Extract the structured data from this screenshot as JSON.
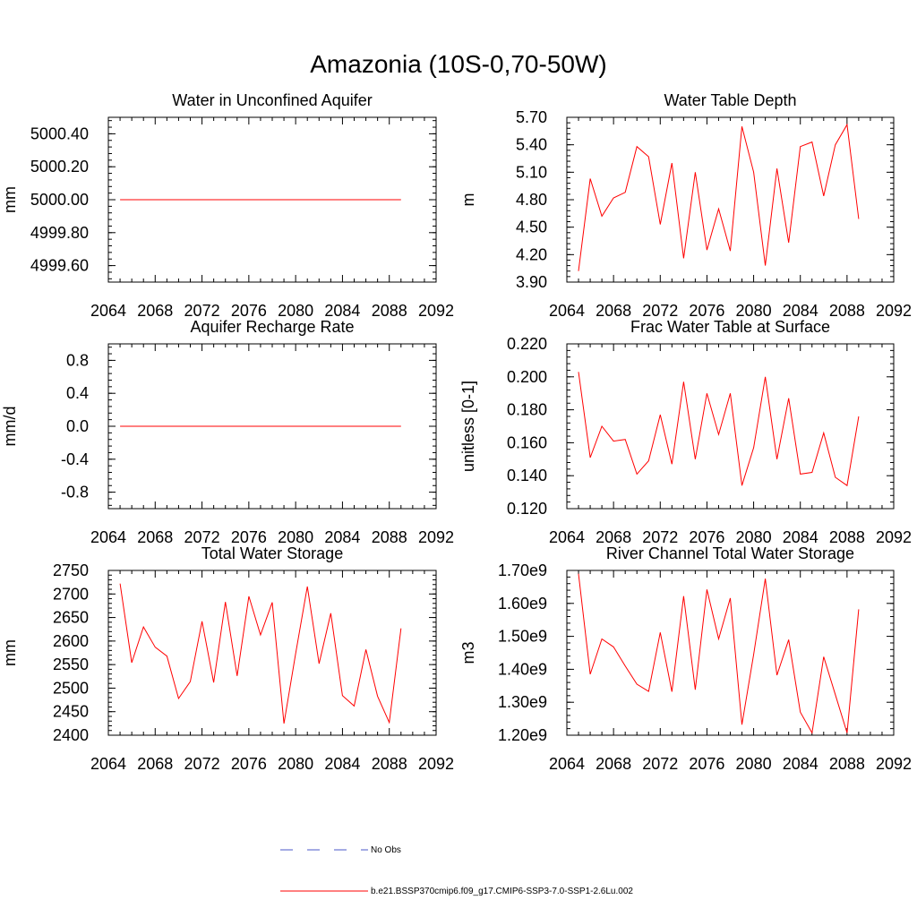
{
  "title": "Amazonia (10S-0,70-50W)",
  "colors": {
    "series": "#ff0000",
    "obs": "#4a57c8",
    "axis": "#000000"
  },
  "legend": {
    "obs_label": "No Obs",
    "run_label": "b.e21.BSSP370cmip6.f09_g17.CMIP6-SSP3-7.0-SSP1-2.6Lu.002"
  },
  "chart_data": [
    {
      "type": "line",
      "title": "Water in Unconfined Aquifer",
      "ylabel": "mm",
      "x": [
        2065,
        2066,
        2067,
        2068,
        2069,
        2070,
        2071,
        2072,
        2073,
        2074,
        2075,
        2076,
        2077,
        2078,
        2079,
        2080,
        2081,
        2082,
        2083,
        2084,
        2085,
        2086,
        2087,
        2088,
        2089
      ],
      "series": [
        {
          "values": [
            5000,
            5000,
            5000,
            5000,
            5000,
            5000,
            5000,
            5000,
            5000,
            5000,
            5000,
            5000,
            5000,
            5000,
            5000,
            5000,
            5000,
            5000,
            5000,
            5000,
            5000,
            5000,
            5000,
            5000,
            5000
          ]
        }
      ],
      "xlim": [
        2064,
        2092
      ],
      "xticks": [
        2064,
        2068,
        2072,
        2076,
        2080,
        2084,
        2088,
        2092
      ],
      "ylim": [
        4999.5,
        5000.5
      ],
      "yticks": [
        4999.6,
        4999.8,
        5000.0,
        5000.2,
        5000.4
      ],
      "ytick_labels": [
        "4999.60",
        "4999.80",
        "5000.00",
        "5000.20",
        "5000.40"
      ]
    },
    {
      "type": "line",
      "title": "Water Table Depth",
      "ylabel": "m",
      "x": [
        2065,
        2066,
        2067,
        2068,
        2069,
        2070,
        2071,
        2072,
        2073,
        2074,
        2075,
        2076,
        2077,
        2078,
        2079,
        2080,
        2081,
        2082,
        2083,
        2084,
        2085,
        2086,
        2087,
        2088,
        2089
      ],
      "series": [
        {
          "values": [
            4.02,
            5.03,
            4.62,
            4.82,
            4.88,
            5.38,
            5.27,
            4.53,
            5.2,
            4.16,
            5.1,
            4.25,
            4.7,
            4.24,
            5.6,
            5.1,
            4.08,
            5.14,
            4.33,
            5.38,
            5.43,
            4.84,
            5.4,
            5.62,
            4.59
          ]
        }
      ],
      "xlim": [
        2064,
        2092
      ],
      "xticks": [
        2064,
        2068,
        2072,
        2076,
        2080,
        2084,
        2088,
        2092
      ],
      "ylim": [
        3.9,
        5.7
      ],
      "yticks": [
        3.9,
        4.2,
        4.5,
        4.8,
        5.1,
        5.4,
        5.7
      ],
      "ytick_labels": [
        "3.90",
        "4.20",
        "4.50",
        "4.80",
        "5.10",
        "5.40",
        "5.70"
      ]
    },
    {
      "type": "line",
      "title": "Aquifer Recharge Rate",
      "ylabel": "mm/d",
      "x": [
        2065,
        2066,
        2067,
        2068,
        2069,
        2070,
        2071,
        2072,
        2073,
        2074,
        2075,
        2076,
        2077,
        2078,
        2079,
        2080,
        2081,
        2082,
        2083,
        2084,
        2085,
        2086,
        2087,
        2088,
        2089
      ],
      "series": [
        {
          "values": [
            0,
            0,
            0,
            0,
            0,
            0,
            0,
            0,
            0,
            0,
            0,
            0,
            0,
            0,
            0,
            0,
            0,
            0,
            0,
            0,
            0,
            0,
            0,
            0,
            0
          ]
        }
      ],
      "xlim": [
        2064,
        2092
      ],
      "xticks": [
        2064,
        2068,
        2072,
        2076,
        2080,
        2084,
        2088,
        2092
      ],
      "ylim": [
        -1.0,
        1.0
      ],
      "yticks": [
        -0.8,
        -0.4,
        0.0,
        0.4,
        0.8
      ],
      "ytick_labels": [
        "-0.8",
        "-0.4",
        "0.0",
        "0.4",
        "0.8"
      ]
    },
    {
      "type": "line",
      "title": "Frac Water Table at Surface",
      "ylabel": "unitless [0-1]",
      "x": [
        2065,
        2066,
        2067,
        2068,
        2069,
        2070,
        2071,
        2072,
        2073,
        2074,
        2075,
        2076,
        2077,
        2078,
        2079,
        2080,
        2081,
        2082,
        2083,
        2084,
        2085,
        2086,
        2087,
        2088,
        2089
      ],
      "series": [
        {
          "values": [
            0.203,
            0.151,
            0.17,
            0.161,
            0.162,
            0.141,
            0.149,
            0.177,
            0.147,
            0.197,
            0.15,
            0.19,
            0.165,
            0.19,
            0.134,
            0.157,
            0.2,
            0.15,
            0.187,
            0.141,
            0.142,
            0.166,
            0.139,
            0.134,
            0.176
          ]
        }
      ],
      "xlim": [
        2064,
        2092
      ],
      "xticks": [
        2064,
        2068,
        2072,
        2076,
        2080,
        2084,
        2088,
        2092
      ],
      "ylim": [
        0.12,
        0.22
      ],
      "yticks": [
        0.12,
        0.14,
        0.16,
        0.18,
        0.2,
        0.22
      ],
      "ytick_labels": [
        "0.120",
        "0.140",
        "0.160",
        "0.180",
        "0.200",
        "0.220"
      ]
    },
    {
      "type": "line",
      "title": "Total Water Storage",
      "ylabel": "mm",
      "x": [
        2065,
        2066,
        2067,
        2068,
        2069,
        2070,
        2071,
        2072,
        2073,
        2074,
        2075,
        2076,
        2077,
        2078,
        2079,
        2080,
        2081,
        2082,
        2083,
        2084,
        2085,
        2086,
        2087,
        2088,
        2089
      ],
      "series": [
        {
          "values": [
            2722,
            2554,
            2630,
            2587,
            2568,
            2478,
            2514,
            2642,
            2512,
            2683,
            2526,
            2695,
            2613,
            2682,
            2425,
            2573,
            2716,
            2552,
            2659,
            2484,
            2462,
            2582,
            2483,
            2427,
            2627
          ]
        }
      ],
      "xlim": [
        2064,
        2092
      ],
      "xticks": [
        2064,
        2068,
        2072,
        2076,
        2080,
        2084,
        2088,
        2092
      ],
      "ylim": [
        2400,
        2750
      ],
      "yticks": [
        2400,
        2450,
        2500,
        2550,
        2600,
        2650,
        2700,
        2750
      ],
      "ytick_labels": [
        "2400",
        "2450",
        "2500",
        "2550",
        "2600",
        "2650",
        "2700",
        "2750"
      ]
    },
    {
      "type": "line",
      "title": "River Channel Total Water Storage",
      "ylabel": "m3",
      "x": [
        2065,
        2066,
        2067,
        2068,
        2069,
        2070,
        2071,
        2072,
        2073,
        2074,
        2075,
        2076,
        2077,
        2078,
        2079,
        2080,
        2081,
        2082,
        2083,
        2084,
        2085,
        2086,
        2087,
        2088,
        2089
      ],
      "series": [
        {
          "values": [
            1690000000.0,
            1385000000.0,
            1492000000.0,
            1468000000.0,
            1410000000.0,
            1355000000.0,
            1333000000.0,
            1512000000.0,
            1332000000.0,
            1622000000.0,
            1338000000.0,
            1642000000.0,
            1492000000.0,
            1616000000.0,
            1232000000.0,
            1445000000.0,
            1675000000.0,
            1382000000.0,
            1490000000.0,
            1270000000.0,
            1207000000.0,
            1438000000.0,
            1323000000.0,
            1207000000.0,
            1582000000.0
          ]
        }
      ],
      "xlim": [
        2064,
        2092
      ],
      "xticks": [
        2064,
        2068,
        2072,
        2076,
        2080,
        2084,
        2088,
        2092
      ],
      "ylim": [
        1200000000.0,
        1700000000.0
      ],
      "yticks": [
        1200000000.0,
        1300000000.0,
        1400000000.0,
        1500000000.0,
        1600000000.0,
        1700000000.0
      ],
      "ytick_labels": [
        "1.20e9",
        "1.30e9",
        "1.40e9",
        "1.50e9",
        "1.60e9",
        "1.70e9"
      ]
    }
  ]
}
